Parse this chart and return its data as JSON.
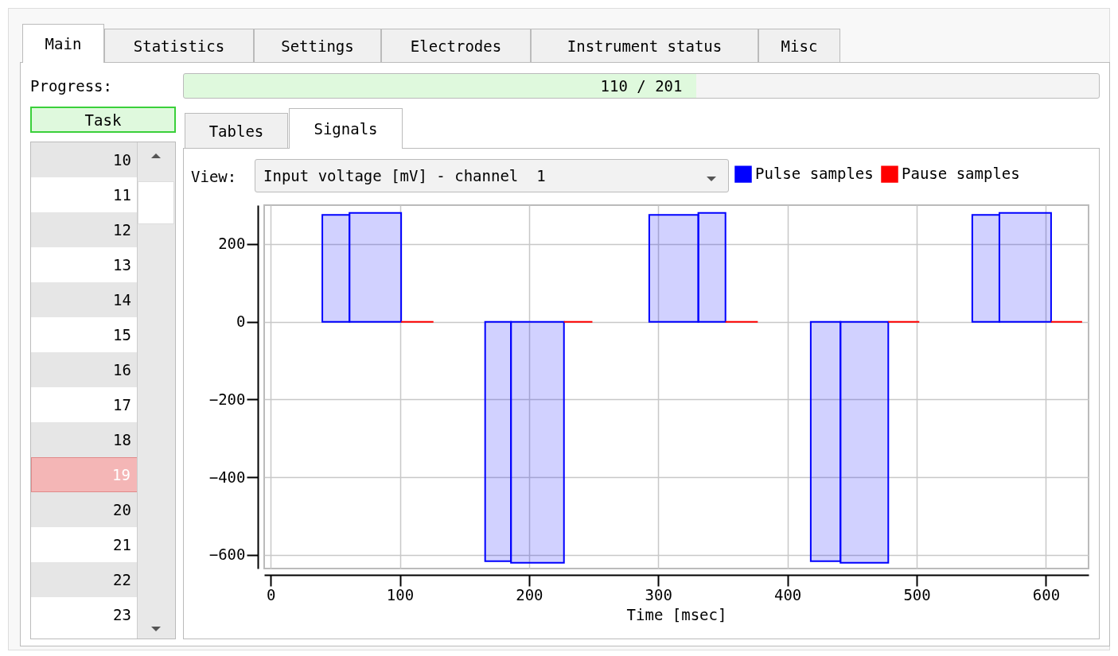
{
  "chart_data": {
    "type": "histogram",
    "xlabel": "Time [msec]",
    "bins": [
      40,
      61,
      101,
      126,
      166,
      186,
      227,
      249,
      293,
      331,
      352,
      377,
      418,
      441,
      478,
      502,
      543,
      564,
      604,
      628
    ],
    "series": [
      {
        "name": "Pulse samples",
        "color": "#0000ff",
        "values": [
          275,
          280,
          null,
          null,
          -616,
          -620,
          null,
          null,
          275,
          280,
          null,
          null,
          -616,
          -620,
          null,
          null,
          275,
          280,
          null
        ]
      },
      {
        "name": "Pause samples",
        "color": "#ff0000",
        "values": [
          null,
          null,
          0,
          null,
          null,
          null,
          0,
          null,
          null,
          null,
          0,
          null,
          null,
          null,
          0,
          null,
          null,
          null,
          0
        ]
      }
    ],
    "xlim": [
      -5,
      633
    ],
    "xticks": [
      0,
      100,
      200,
      300,
      400,
      500,
      600
    ],
    "ylim": [
      -635,
      300
    ],
    "yticks": [
      -600,
      -400,
      -200,
      0,
      200
    ],
    "grid": true,
    "legend": "top right",
    "annotations": [
      "Main",
      "Statistics",
      "Settings",
      "Electrodes",
      "Instrument status",
      "Misc",
      "Progress:",
      "110 / 201",
      "Task",
      "10",
      "11",
      "12",
      "13",
      "14",
      "15",
      "16",
      "17",
      "18",
      "19",
      "20",
      "21",
      "22",
      "23",
      "Tables",
      "Signals",
      "View:",
      "Input voltage [mV] - channel  1"
    ]
  }
}
